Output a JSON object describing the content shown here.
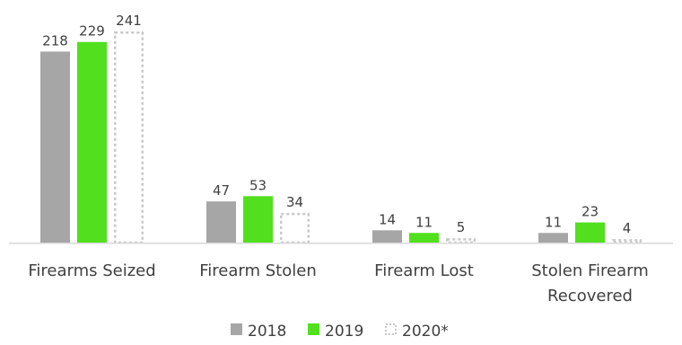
{
  "chart_data": {
    "type": "bar",
    "categories": [
      [
        "Firearms Seized"
      ],
      [
        "Firearm Stolen"
      ],
      [
        "Firearm Lost"
      ],
      [
        "Stolen Firearm",
        "Recovered"
      ]
    ],
    "series": [
      {
        "name": "2018",
        "values": [
          218,
          47,
          14,
          11
        ],
        "color": "#a6a6a6",
        "style": "solid"
      },
      {
        "name": "2019",
        "values": [
          229,
          53,
          11,
          23
        ],
        "color": "#52e01e",
        "style": "solid"
      },
      {
        "name": "2020*",
        "values": [
          241,
          34,
          5,
          4
        ],
        "color": "#c8c8c8",
        "style": "dotted-outline"
      }
    ],
    "ylim": [
      0,
      241
    ],
    "grid": false,
    "legend": "bottom-center",
    "data_labels": true
  }
}
